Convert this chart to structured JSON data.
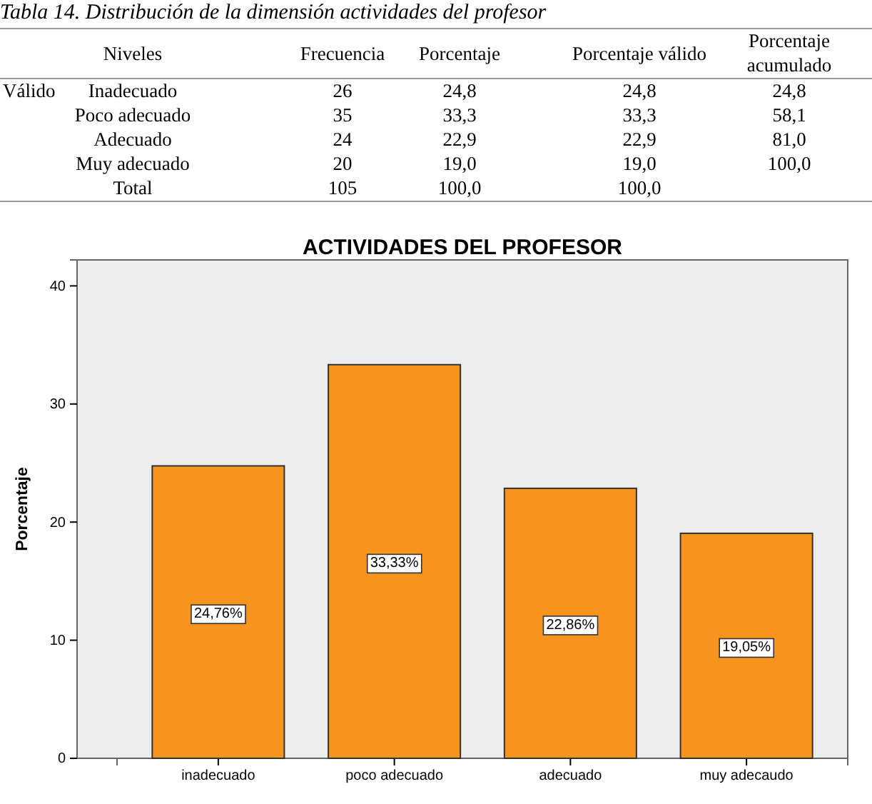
{
  "chart_data": [
    {
      "type": "other",
      "title": "Tabla 14. Distribución de la dimensión actividades del profesor",
      "annotations": [
        "Niveles",
        "Frecuencia",
        "Porcentaje",
        "Porcentaje válido",
        "Porcentaje acumulado",
        "Válido",
        "Inadecuado",
        "26",
        "24,8",
        "24,8",
        "24,8",
        "Poco adecuado",
        "35",
        "33,3",
        "33,3",
        "58,1",
        "Adecuado",
        "24",
        "22,9",
        "22,9",
        "81,0",
        "Muy adecuado",
        "20",
        "19,0",
        "19,0",
        "100,0",
        "Total",
        "105",
        "100,0",
        "100,0"
      ]
    },
    {
      "type": "bar",
      "title": "ACTIVIDADES DEL PROFESOR",
      "ylabel": "Porcentaje",
      "categories": [
        "inadecuado",
        "poco adecuado",
        "adecuado",
        "muy adecaudo"
      ],
      "values": [
        24.76,
        33.33,
        22.86,
        19.05
      ],
      "color": "#f7941d",
      "value_labels": [
        "24,76%",
        "33,33%",
        "22,86%",
        "19,05%"
      ],
      "ylim": [
        0,
        42.2
      ],
      "yticks": [
        0,
        10,
        20,
        30,
        40
      ],
      "grid": false
    }
  ]
}
